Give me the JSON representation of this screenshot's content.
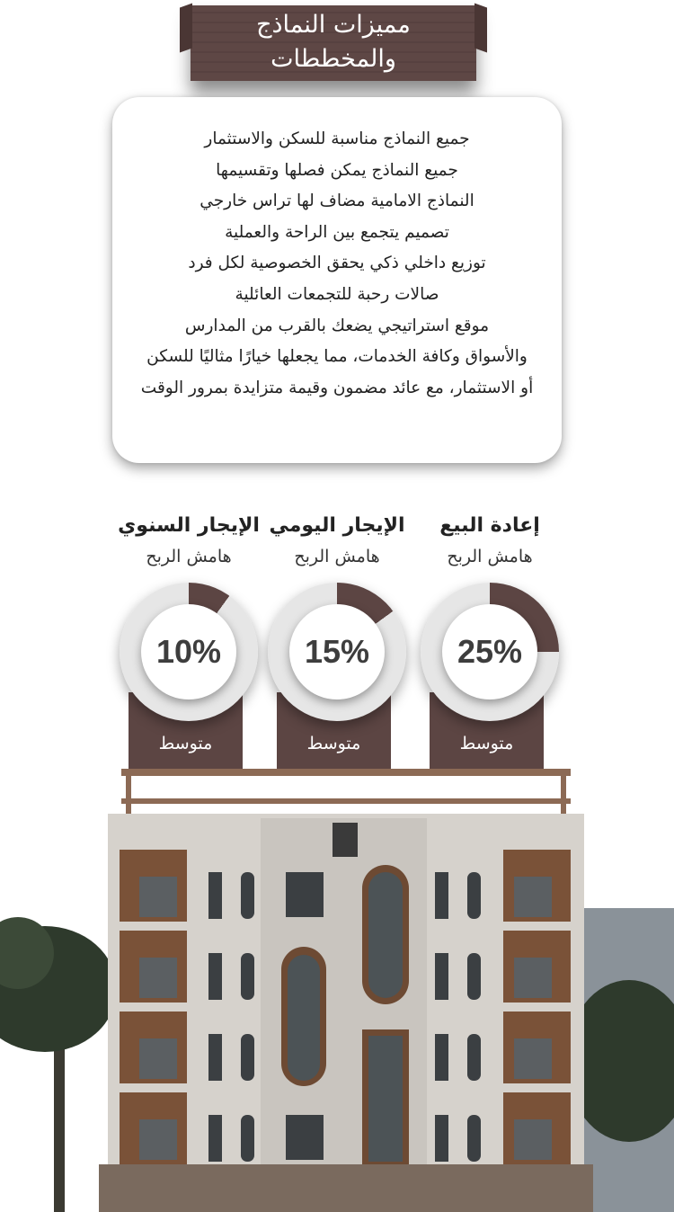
{
  "title": {
    "line1": "مميزات النماذج",
    "line2": "والمخططات"
  },
  "features": [
    "جميع النماذج مناسبة للسكن والاستثمار",
    "جميع النماذج يمكن فصلها وتقسيمها",
    "النماذج الامامية مضاف لها تراس خارجي",
    "تصميم يتجمع بين الراحة والعملية",
    "توزيع داخلي ذكي يحقق الخصوصية لكل فرد",
    "صالات رحبة للتجمعات العائلية",
    "موقع استراتيجي يضعك بالقرب من المدارس",
    "والأسواق وكافة الخدمات، مما يجعلها خيارًا مثاليًا للسكن",
    "أو الاستثمار، مع عائد مضمون وقيمة متزايدة بمرور الوقت"
  ],
  "colors": {
    "accent": "#5c4543",
    "ring": "#e6e6e6"
  },
  "chart_data": {
    "type": "pie",
    "categories": [
      "إعادة البيع",
      "الإيجار اليومي",
      "الإيجار السنوي"
    ],
    "subtitle": "هامش الربح",
    "values": [
      25,
      15,
      10
    ],
    "labels": [
      "25%",
      "15%",
      "10%"
    ],
    "footer": "متوسط"
  }
}
